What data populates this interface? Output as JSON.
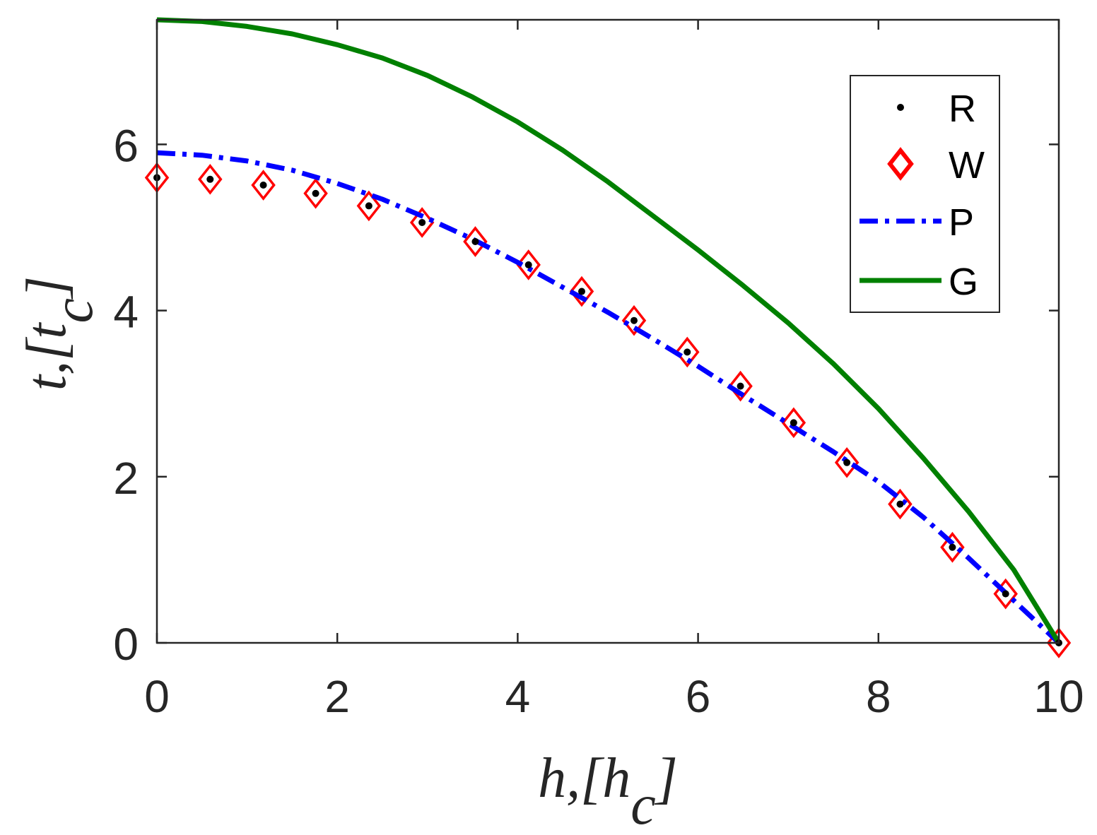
{
  "chart_data": {
    "type": "line",
    "xlabel": "h,[h_c]",
    "ylabel": "t,[t_c]",
    "xlim": [
      0,
      10
    ],
    "ylim": [
      0,
      7.5
    ],
    "grid": false,
    "legend_position": "top-right",
    "x_ticks": [
      {
        "value": 0,
        "label": "0"
      },
      {
        "value": 2,
        "label": "2"
      },
      {
        "value": 4,
        "label": "4"
      },
      {
        "value": 6,
        "label": "6"
      },
      {
        "value": 8,
        "label": "8"
      },
      {
        "value": 10,
        "label": "10"
      }
    ],
    "y_ticks": [
      {
        "value": 0,
        "label": "0"
      },
      {
        "value": 2,
        "label": "2"
      },
      {
        "value": 4,
        "label": "4"
      },
      {
        "value": 6,
        "label": "6"
      }
    ],
    "series": [
      {
        "name": "R",
        "style": "dot",
        "color": "#000000",
        "x": [
          0.0,
          0.59,
          1.18,
          1.76,
          2.35,
          2.94,
          3.53,
          4.12,
          4.71,
          5.29,
          5.88,
          6.47,
          7.06,
          7.65,
          8.24,
          8.82,
          9.41,
          10.0
        ],
        "y": [
          5.6,
          5.58,
          5.51,
          5.41,
          5.26,
          5.06,
          4.83,
          4.55,
          4.23,
          3.88,
          3.5,
          3.09,
          2.65,
          2.17,
          1.67,
          1.15,
          0.59,
          0.0
        ]
      },
      {
        "name": "W",
        "style": "diamond",
        "color": "#ff0000",
        "x": [
          0.0,
          0.59,
          1.18,
          1.76,
          2.35,
          2.94,
          3.53,
          4.12,
          4.71,
          5.29,
          5.88,
          6.47,
          7.06,
          7.65,
          8.24,
          8.82,
          9.41,
          10.0
        ],
        "y": [
          5.6,
          5.58,
          5.51,
          5.41,
          5.26,
          5.06,
          4.83,
          4.55,
          4.23,
          3.88,
          3.5,
          3.09,
          2.65,
          2.17,
          1.67,
          1.15,
          0.59,
          0.0
        ]
      },
      {
        "name": "P",
        "style": "dashdot",
        "color": "#0000ff",
        "x": [
          0,
          0.5,
          1,
          1.5,
          2,
          2.5,
          3,
          3.5,
          4,
          4.5,
          5,
          5.5,
          6,
          6.5,
          7,
          7.5,
          8,
          8.5,
          9,
          9.5,
          10
        ],
        "y": [
          5.9,
          5.87,
          5.8,
          5.69,
          5.53,
          5.34,
          5.11,
          4.86,
          4.58,
          4.28,
          3.98,
          3.66,
          3.33,
          2.98,
          2.64,
          2.3,
          1.94,
          1.51,
          1.02,
          0.51,
          0.0
        ]
      },
      {
        "name": "G",
        "style": "solid",
        "color": "#008000",
        "x": [
          0,
          0.5,
          1,
          1.5,
          2,
          2.5,
          3,
          3.5,
          4,
          4.5,
          5,
          5.5,
          6,
          6.5,
          7,
          7.5,
          8,
          8.5,
          9,
          9.5,
          10
        ],
        "y": [
          7.5,
          7.48,
          7.42,
          7.33,
          7.2,
          7.04,
          6.83,
          6.57,
          6.27,
          5.93,
          5.55,
          5.14,
          4.73,
          4.3,
          3.85,
          3.36,
          2.82,
          2.22,
          1.58,
          0.88,
          0.0
        ]
      }
    ]
  }
}
